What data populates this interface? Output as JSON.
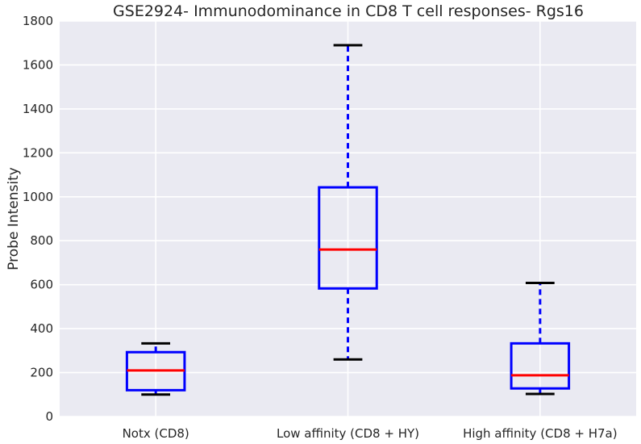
{
  "chart_data": {
    "type": "boxplot",
    "title": "GSE2924- Immunodominance in CD8 T cell responses- Rgs16",
    "xlabel": "",
    "ylabel": "Probe Intensity",
    "ylim": [
      0,
      1800
    ],
    "yticks": [
      0,
      200,
      400,
      600,
      800,
      1000,
      1200,
      1400,
      1600,
      1800
    ],
    "grid": true,
    "categories": [
      "Notx (CD8)",
      "Low affinity (CD8 + HY)",
      "High affinity (CD8 + H7a)"
    ],
    "boxes": [
      {
        "whisker_low": 100,
        "q1": 120,
        "median": 210,
        "q3": 293,
        "whisker_high": 333
      },
      {
        "whisker_low": 260,
        "q1": 583,
        "median": 760,
        "q3": 1043,
        "whisker_high": 1690
      },
      {
        "whisker_low": 103,
        "q1": 128,
        "median": 188,
        "q3": 333,
        "whisker_high": 608
      }
    ],
    "colors": {
      "background": "#EAEAF2",
      "grid": "#FFFFFF",
      "box": "#0000FF",
      "median": "#FF0000",
      "caps": "#000000",
      "whiskers": "#0000FF"
    }
  }
}
